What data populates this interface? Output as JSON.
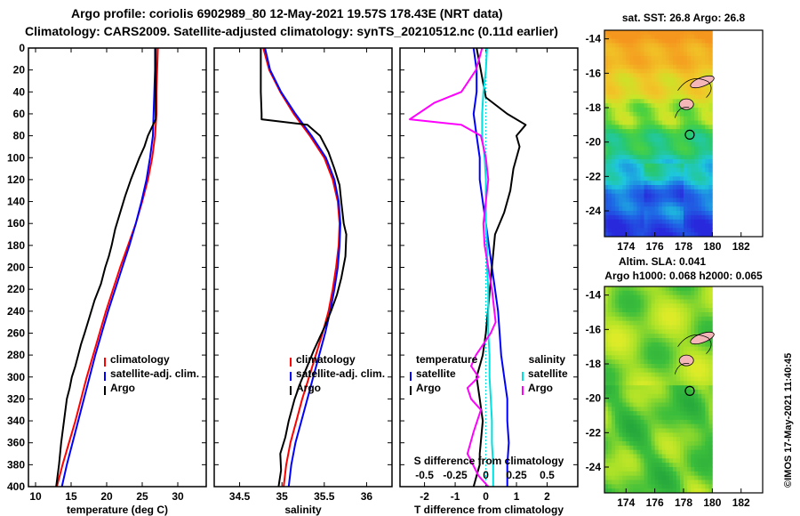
{
  "header": {
    "line1": "Argo profile: coriolis 6902989_80 12-May-2021 19.57S 178.43E (NRT data)",
    "line2": "Climatology: CARS2009. Satellite-adjusted climatology: synTS_20210512.nc (0.11d earlier)"
  },
  "colors": {
    "climatology": "#ff0000",
    "satellite": "#0000ff",
    "argo": "#000000",
    "sal_diff": "#ff00ff",
    "sal_sat": "#00e0e0"
  },
  "credit": "©IMOS 17-May-2021 11:40:45",
  "chart_data": [
    {
      "type": "line",
      "id": "temperature",
      "xlabel": "temperature (deg C)",
      "ylabel": "",
      "xlim": [
        9,
        34
      ],
      "ylim": [
        400,
        0
      ],
      "xticks": [
        10,
        15,
        20,
        25,
        30
      ],
      "yticks": [
        0,
        20,
        40,
        60,
        80,
        100,
        120,
        140,
        160,
        180,
        200,
        220,
        240,
        260,
        280,
        300,
        320,
        340,
        360,
        380,
        400
      ],
      "legend": [
        "climatology",
        "satellite-adj. clim.",
        "Argo"
      ],
      "series": [
        {
          "name": "climatology",
          "color": "#ff0000",
          "x": [
            27.2,
            27.1,
            27.0,
            27.0,
            26.8,
            26.4,
            25.8,
            25.0,
            24.1,
            23.0,
            21.9,
            20.9,
            19.9,
            19.0,
            18.1,
            17.2,
            16.4,
            15.6,
            14.7,
            13.8,
            13.0
          ],
          "y": [
            0,
            20,
            40,
            60,
            80,
            100,
            120,
            140,
            160,
            180,
            200,
            220,
            240,
            260,
            280,
            300,
            320,
            340,
            360,
            380,
            400
          ]
        },
        {
          "name": "satellite-adj. clim.",
          "color": "#0000ff",
          "x": [
            26.8,
            26.8,
            26.7,
            26.6,
            26.5,
            26.1,
            25.6,
            24.9,
            24.1,
            23.2,
            22.2,
            21.2,
            20.2,
            19.3,
            18.4,
            17.6,
            16.8,
            16.0,
            15.2,
            14.4,
            13.7
          ],
          "y": [
            0,
            20,
            40,
            60,
            80,
            100,
            120,
            140,
            160,
            180,
            200,
            220,
            240,
            260,
            280,
            300,
            320,
            340,
            360,
            380,
            400
          ]
        },
        {
          "name": "Argo",
          "color": "#000000",
          "x": [
            26.9,
            26.9,
            26.9,
            26.9,
            26.9,
            26.9,
            26.9,
            26.9,
            25.8,
            25.3,
            24.6,
            24.0,
            23.4,
            22.6,
            21.9,
            21.2,
            20.7,
            20.3,
            19.8,
            19.2,
            18.3,
            17.6,
            16.9,
            16.4,
            16.0,
            15.6,
            15.1,
            14.8,
            14.4,
            14.0,
            13.6,
            13.3,
            12.9
          ],
          "y": [
            0,
            10,
            20,
            30,
            40,
            50,
            60,
            65,
            80,
            90,
            100,
            110,
            120,
            135,
            150,
            165,
            180,
            190,
            200,
            215,
            230,
            245,
            260,
            270,
            280,
            290,
            300,
            310,
            320,
            340,
            360,
            380,
            400
          ]
        }
      ]
    },
    {
      "type": "line",
      "id": "salinity",
      "xlabel": "salinity",
      "ylabel": "",
      "xlim": [
        34.2,
        36.3
      ],
      "ylim": [
        400,
        0
      ],
      "xticks": [
        34.5,
        35,
        35.5,
        36
      ],
      "yticks": [
        0,
        20,
        40,
        60,
        80,
        100,
        120,
        140,
        160,
        180,
        200,
        220,
        240,
        260,
        280,
        300,
        320,
        340,
        360,
        380,
        400
      ],
      "legend": [
        "climatology",
        "satellite-adj. clim.",
        "Argo"
      ],
      "series": [
        {
          "name": "climatology",
          "color": "#ff0000",
          "x": [
            34.78,
            34.85,
            34.98,
            35.14,
            35.33,
            35.5,
            35.6,
            35.66,
            35.68,
            35.67,
            35.64,
            35.6,
            35.55,
            35.48,
            35.4,
            35.32,
            35.24,
            35.17,
            35.1,
            35.05,
            35.02
          ],
          "y": [
            0,
            20,
            40,
            60,
            80,
            100,
            120,
            140,
            160,
            180,
            200,
            220,
            240,
            260,
            280,
            300,
            320,
            340,
            360,
            380,
            400
          ]
        },
        {
          "name": "satellite-adj. clim.",
          "color": "#0000ff",
          "x": [
            34.8,
            34.86,
            34.99,
            35.16,
            35.35,
            35.52,
            35.62,
            35.67,
            35.69,
            35.68,
            35.66,
            35.62,
            35.57,
            35.51,
            35.44,
            35.37,
            35.3,
            35.23,
            35.16,
            35.11,
            35.08
          ],
          "y": [
            0,
            20,
            40,
            60,
            80,
            100,
            120,
            140,
            160,
            180,
            200,
            220,
            240,
            260,
            280,
            300,
            320,
            340,
            360,
            380,
            400
          ]
        },
        {
          "name": "Argo",
          "color": "#000000",
          "x": [
            34.75,
            34.75,
            34.75,
            34.76,
            34.76,
            35.3,
            35.45,
            35.55,
            35.62,
            35.68,
            35.7,
            35.73,
            35.76,
            35.75,
            35.7,
            35.65,
            35.58,
            35.5,
            35.44,
            35.38,
            35.3,
            35.22,
            35.15,
            35.08,
            35.04,
            34.98,
            34.99,
            34.96
          ],
          "y": [
            0,
            20,
            40,
            60,
            65,
            70,
            80,
            95,
            110,
            125,
            140,
            160,
            170,
            190,
            210,
            225,
            240,
            255,
            265,
            275,
            290,
            305,
            320,
            340,
            355,
            370,
            385,
            400
          ]
        }
      ]
    },
    {
      "type": "line",
      "id": "difference",
      "xlabel": "T difference from climatology",
      "x2label": "S difference from climatology",
      "xlim": [
        -2.8,
        3.0
      ],
      "ylim": [
        400,
        0
      ],
      "xticks": [
        -2,
        -1,
        0,
        1,
        2
      ],
      "x2lim": [
        -0.7,
        0.75
      ],
      "x2ticks": [
        -0.5,
        -0.25,
        0,
        0.25,
        0.5
      ],
      "x2ticklabels": [
        "-0.5",
        "-0.25",
        "0",
        "0.25",
        "0.5"
      ],
      "yticks": [
        0,
        20,
        40,
        60,
        80,
        100,
        120,
        140,
        160,
        180,
        200,
        220,
        240,
        260,
        280,
        300,
        320,
        340,
        360,
        380,
        400
      ],
      "legend_temperature": {
        "heading": "temperature",
        "items": [
          "satellite",
          "Argo"
        ]
      },
      "legend_salinity": {
        "heading": "salinity",
        "items": [
          "satellite",
          "Argo"
        ]
      },
      "series": [
        {
          "name": "temperature satellite",
          "axis": "T",
          "color": "#0000ff",
          "x": [
            -0.4,
            -0.3,
            -0.3,
            -0.4,
            -0.3,
            -0.2,
            -0.2,
            -0.1,
            0,
            0.1,
            0.2,
            0.3,
            0.4,
            0.45,
            0.5,
            0.6,
            0.7,
            0.7,
            0.75,
            0.7,
            0.7
          ],
          "y": [
            0,
            20,
            40,
            60,
            80,
            100,
            120,
            140,
            160,
            180,
            200,
            220,
            240,
            260,
            280,
            300,
            320,
            340,
            360,
            380,
            400
          ]
        },
        {
          "name": "temperature Argo",
          "axis": "T",
          "color": "#000000",
          "x": [
            -0.3,
            -0.2,
            -0.1,
            0,
            0.7,
            1.3,
            1.0,
            1.1,
            0.9,
            0.8,
            0.6,
            0.3,
            0.2,
            0.1,
            0,
            -0.1,
            -0.3,
            -0.2,
            -0.1,
            -0.15,
            -0.2,
            -0.2,
            -0.3,
            -0.4
          ],
          "y": [
            0,
            15,
            30,
            45,
            60,
            70,
            80,
            90,
            110,
            130,
            150,
            170,
            200,
            230,
            260,
            280,
            300,
            320,
            340,
            355,
            370,
            380,
            390,
            400
          ]
        },
        {
          "name": "salinity satellite",
          "axis": "S",
          "color": "#00e0e0",
          "x": [
            0.01,
            0.0,
            -0.02,
            -0.03,
            -0.03,
            -0.01,
            0.0,
            0.0,
            0.0,
            0.01,
            0.01,
            0.02,
            0.02,
            0.02,
            0.03,
            0.03,
            0.04,
            0.05,
            0.05,
            0.06,
            0.06
          ],
          "y": [
            0,
            20,
            40,
            60,
            80,
            100,
            120,
            140,
            160,
            180,
            200,
            220,
            240,
            260,
            280,
            300,
            320,
            340,
            360,
            380,
            400
          ]
        },
        {
          "name": "salinity Argo",
          "axis": "S",
          "color": "#ff00ff",
          "x": [
            -0.03,
            -0.08,
            -0.2,
            -0.42,
            -0.62,
            -0.2,
            -0.04,
            0.0,
            0.02,
            0.0,
            -0.02,
            -0.01,
            0.02,
            0.05,
            0.07,
            0.08,
            0.04,
            -0.02,
            -0.08,
            -0.12,
            -0.06,
            -0.15,
            -0.12,
            -0.04,
            -0.1,
            -0.15,
            -0.06,
            0.02
          ],
          "y": [
            0,
            20,
            40,
            50,
            65,
            70,
            80,
            100,
            120,
            140,
            160,
            180,
            200,
            220,
            240,
            250,
            260,
            270,
            280,
            290,
            300,
            310,
            320,
            330,
            350,
            370,
            390,
            400
          ]
        }
      ]
    },
    {
      "type": "heatmap",
      "id": "sst_map",
      "title": "sat. SST: 26.8 Argo: 26.8",
      "xlim": [
        172.5,
        183.5
      ],
      "ylim": [
        -25.5,
        -13.5
      ],
      "xticks": [
        174,
        176,
        178,
        180,
        182
      ],
      "yticks": [
        -14,
        -16,
        -18,
        -20,
        -22,
        -24
      ],
      "argo_position": {
        "lon": 178.43,
        "lat": -19.57
      }
    },
    {
      "type": "heatmap",
      "id": "sla_map",
      "title": "Altim. SLA: 0.041",
      "subtitle": "Argo h1000: 0.068 h2000: 0.065",
      "xlim": [
        172.5,
        183.5
      ],
      "ylim": [
        -25.5,
        -13.5
      ],
      "xticks": [
        174,
        176,
        178,
        180,
        182
      ],
      "yticks": [
        -14,
        -16,
        -18,
        -20,
        -22,
        -24
      ],
      "argo_position": {
        "lon": 178.43,
        "lat": -19.57
      }
    }
  ]
}
